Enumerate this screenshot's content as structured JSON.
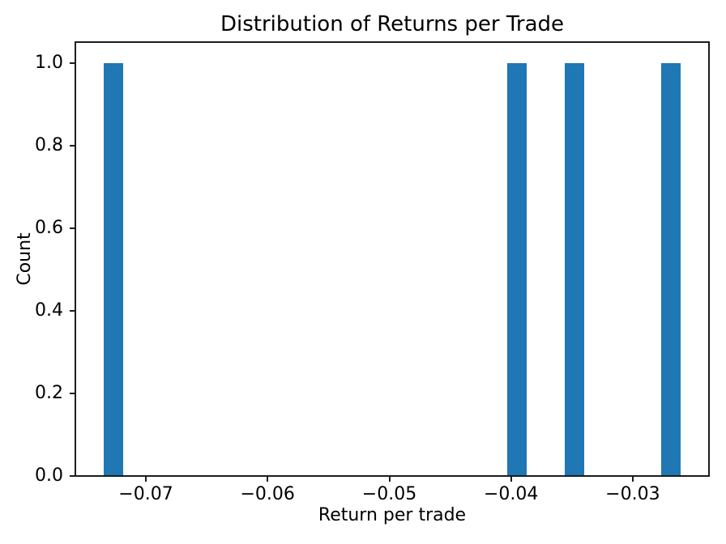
{
  "chart_data": {
    "type": "bar",
    "subtype": "histogram",
    "title": "Distribution of Returns per Trade",
    "xlabel": "Return per trade",
    "ylabel": "Count",
    "xlim": [
      -0.07579,
      -0.02374
    ],
    "ylim": [
      0,
      1.05
    ],
    "grid": false,
    "legend": null,
    "bar_color": "#1f77b4",
    "axis_color": "#1c1c1c",
    "background_color": "#ffffff",
    "bin_width": 0.00158,
    "bars": [
      {
        "x_left": -0.07346,
        "x_right": -0.07188,
        "center": -0.0727,
        "height": 1.0
      },
      {
        "x_left": -0.04031,
        "x_right": -0.03873,
        "center": -0.0395,
        "height": 1.0
      },
      {
        "x_left": -0.03557,
        "x_right": -0.03399,
        "center": -0.0348,
        "height": 1.0
      },
      {
        "x_left": -0.02765,
        "x_right": -0.02607,
        "center": -0.0269,
        "height": 1.0
      }
    ],
    "x_ticks": [
      {
        "value": -0.07,
        "label": "−0.07"
      },
      {
        "value": -0.06,
        "label": "−0.06"
      },
      {
        "value": -0.05,
        "label": "−0.05"
      },
      {
        "value": -0.04,
        "label": "−0.04"
      },
      {
        "value": -0.03,
        "label": "−0.03"
      }
    ],
    "y_ticks": [
      {
        "value": 0.0,
        "label": "0.0"
      },
      {
        "value": 0.2,
        "label": "0.2"
      },
      {
        "value": 0.4,
        "label": "0.4"
      },
      {
        "value": 0.6,
        "label": "0.6"
      },
      {
        "value": 0.8,
        "label": "0.8"
      },
      {
        "value": 1.0,
        "label": "1.0"
      }
    ]
  }
}
